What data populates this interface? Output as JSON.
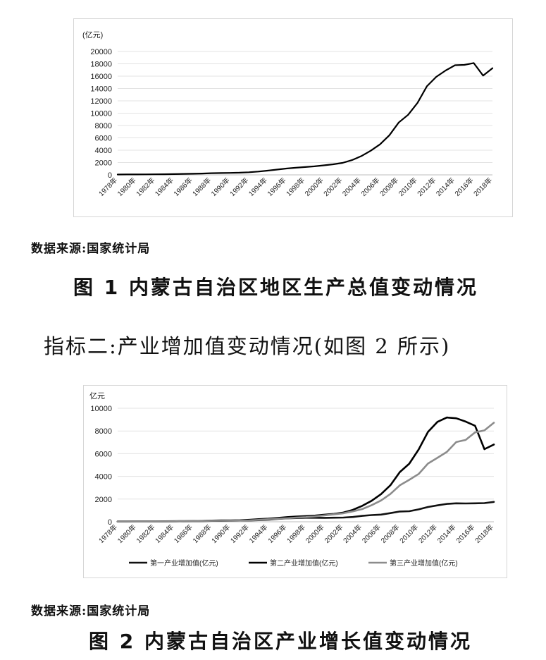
{
  "chart_data": [
    {
      "type": "line",
      "title": "",
      "ylabel": "(亿元)",
      "ylim": [
        0,
        20000
      ],
      "yticks": [
        0,
        2000,
        4000,
        6000,
        8000,
        10000,
        12000,
        14000,
        16000,
        18000,
        20000
      ],
      "x": [
        1978,
        1979,
        1980,
        1981,
        1982,
        1983,
        1984,
        1985,
        1986,
        1987,
        1988,
        1989,
        1990,
        1991,
        1992,
        1993,
        1994,
        1995,
        1996,
        1997,
        1998,
        1999,
        2000,
        2001,
        2002,
        2003,
        2004,
        2005,
        2006,
        2007,
        2008,
        2009,
        2010,
        2011,
        2012,
        2013,
        2014,
        2015,
        2016,
        2017,
        2018
      ],
      "x_tick_labels": [
        "1978年",
        "1980年",
        "1982年",
        "1984年",
        "1986年",
        "1988年",
        "1990年",
        "1992年",
        "1994年",
        "1996年",
        "1998年",
        "2000年",
        "2002年",
        "2004年",
        "2006年",
        "2008年",
        "2010年",
        "2012年",
        "2014年",
        "2016年",
        "2018年"
      ],
      "grid": "horizontal",
      "series": [
        {
          "values": [
            58,
            64,
            68,
            77,
            94,
            105,
            128,
            164,
            182,
            213,
            271,
            292,
            319,
            359,
            421,
            538,
            682,
            857,
            1023,
            1154,
            1263,
            1379,
            1539,
            1714,
            1941,
            2388,
            3042,
            3905,
            4944,
            6423,
            8496,
            9740,
            11672,
            14360,
            15881,
            16917,
            17770,
            17832,
            18128,
            16096,
            17289
          ]
        }
      ]
    },
    {
      "type": "line",
      "title": "",
      "ylabel": "亿元",
      "ylim": [
        0,
        10000
      ],
      "yticks": [
        0,
        2000,
        4000,
        6000,
        8000,
        10000
      ],
      "x": [
        1978,
        1979,
        1980,
        1981,
        1982,
        1983,
        1984,
        1985,
        1986,
        1987,
        1988,
        1989,
        1990,
        1991,
        1992,
        1993,
        1994,
        1995,
        1996,
        1997,
        1998,
        1999,
        2000,
        2001,
        2002,
        2003,
        2004,
        2005,
        2006,
        2007,
        2008,
        2009,
        2010,
        2011,
        2012,
        2013,
        2014,
        2015,
        2016,
        2017,
        2018
      ],
      "x_tick_labels": [
        "1978年",
        "1980年",
        "1982年",
        "1984年",
        "1986年",
        "1988年",
        "1990年",
        "1992年",
        "1994年",
        "1996年",
        "1998年",
        "2000年",
        "2002年",
        "2004年",
        "2006年",
        "2008年",
        "2010年",
        "2012年",
        "2014年",
        "2016年",
        "2018年"
      ],
      "grid": "horizontal",
      "legend": "bottom",
      "series": [
        {
          "name": "第一产业增加值(亿元)",
          "color": "#111111",
          "values": [
            19,
            21,
            22,
            26,
            31,
            35,
            40,
            45,
            51,
            59,
            78,
            82,
            101,
            112,
            120,
            140,
            180,
            250,
            303,
            332,
            351,
            356,
            350,
            359,
            374,
            420,
            522,
            589,
            634,
            762,
            907,
            930,
            1096,
            1306,
            1448,
            1575,
            1627,
            1618,
            1628,
            1648,
            1753
          ]
        },
        {
          "name": "第二产业增加值(亿元)",
          "color": "#000000",
          "values": [
            26,
            28,
            30,
            32,
            38,
            42,
            50,
            65,
            70,
            82,
            105,
            118,
            120,
            136,
            174,
            230,
            276,
            339,
            410,
            457,
            500,
            545,
            626,
            694,
            813,
            1048,
            1402,
            1851,
            2435,
            3215,
            4377,
            5115,
            6367,
            7922,
            8802,
            9185,
            9120,
            8827,
            8458,
            6399,
            6807
          ]
        },
        {
          "name": "第三产业增加值(亿元)",
          "color": "#8c8c8c",
          "values": [
            13,
            15,
            16,
            19,
            25,
            28,
            38,
            54,
            61,
            72,
            88,
            92,
            98,
            111,
            127,
            168,
            226,
            268,
            310,
            365,
            412,
            478,
            563,
            661,
            754,
            920,
            1118,
            1465,
            1875,
            2446,
            3212,
            3695,
            4209,
            5132,
            5631,
            6157,
            7023,
            7213,
            7874,
            8047,
            8729
          ]
        }
      ]
    }
  ],
  "source1": "数据来源:国家统计局",
  "caption1": "图 1  内蒙古自治区地区生产总值变动情况",
  "heading": "指标二:产业增加值变动情况(如图 2 所示)",
  "source2": "数据来源:国家统计局",
  "caption2": "图 2  内蒙古自治区产业增长值变动情况"
}
